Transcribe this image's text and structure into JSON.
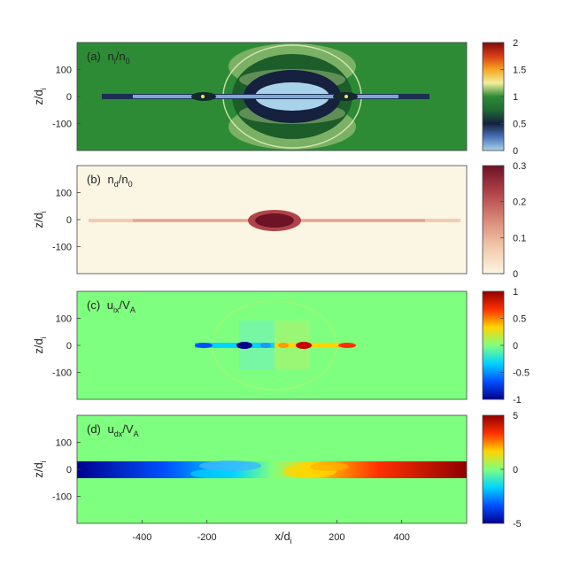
{
  "chart_data": [
    {
      "type": "heatmap",
      "panel_label": "(a)",
      "quantity": {
        "base": "n",
        "sub1": "i",
        "mid": "/n",
        "sub2": "0"
      },
      "ylabel": {
        "base": "z/d",
        "sub": "i"
      },
      "xlim": [
        -600,
        600
      ],
      "ylim": [
        -200,
        200
      ],
      "yticks": [
        100,
        0,
        -100
      ],
      "xticks": [],
      "colorbar": {
        "min": 0,
        "max": 2,
        "ticks": [
          "2",
          "1.5",
          "1",
          "0.5",
          "0"
        ],
        "colormap": [
          "#a9d3ea",
          "#4a74b8",
          "#14213d",
          "#1f6a35",
          "#2e8b35",
          "#f2ef9c",
          "#f4a520",
          "#d93c16",
          "#7f0b0b"
        ]
      },
      "background_value": 1
    },
    {
      "type": "heatmap",
      "panel_label": "(b)",
      "quantity": {
        "base": "n",
        "sub1": "d",
        "mid": "/n",
        "sub2": "0"
      },
      "ylabel": {
        "base": "z/d",
        "sub": "i"
      },
      "xlim": [
        -600,
        600
      ],
      "ylim": [
        -200,
        200
      ],
      "yticks": [
        100,
        0,
        -100
      ],
      "xticks": [],
      "colorbar": {
        "min": 0,
        "max": 0.3,
        "ticks": [
          "0.3",
          "0.2",
          "0.1",
          "0"
        ],
        "colormap": [
          "#fbf5e3",
          "#f1c8a8",
          "#d98877",
          "#b0434a",
          "#6e1226"
        ]
      },
      "background_value": 0
    },
    {
      "type": "heatmap",
      "panel_label": "(c)",
      "quantity": {
        "base": "u",
        "sub1": "ix",
        "mid": "/V",
        "sub2": "A"
      },
      "ylabel": {
        "base": "z/d",
        "sub": "i"
      },
      "xlim": [
        -600,
        600
      ],
      "ylim": [
        -200,
        200
      ],
      "yticks": [
        100,
        0,
        -100
      ],
      "xticks": [],
      "colorbar": {
        "min": -1,
        "max": 1,
        "ticks": [
          "1",
          "0.5",
          "0",
          "-0.5",
          "-1"
        ],
        "colormap": [
          "#00008f",
          "#0050ff",
          "#00d4ff",
          "#7fff7f",
          "#ffd500",
          "#ff3000",
          "#8f0000"
        ]
      },
      "background_value": 0
    },
    {
      "type": "heatmap",
      "panel_label": "(d)",
      "quantity": {
        "base": "u",
        "sub1": "dx",
        "mid": "/V",
        "sub2": "A"
      },
      "ylabel": {
        "base": "z/d",
        "sub": "i"
      },
      "xlabel": {
        "base": "x/d",
        "sub": "i"
      },
      "xlim": [
        -600,
        600
      ],
      "ylim": [
        -200,
        200
      ],
      "yticks": [
        100,
        0,
        -100
      ],
      "xticks": [
        -400,
        -200,
        200,
        400
      ],
      "colorbar": {
        "min": -5,
        "max": 5,
        "ticks": [
          "5",
          "0",
          "-5"
        ],
        "colormap": [
          "#00008f",
          "#0050ff",
          "#00d4ff",
          "#7fff7f",
          "#ffd500",
          "#ff3000",
          "#8f0000"
        ]
      },
      "background_value": 0
    }
  ]
}
